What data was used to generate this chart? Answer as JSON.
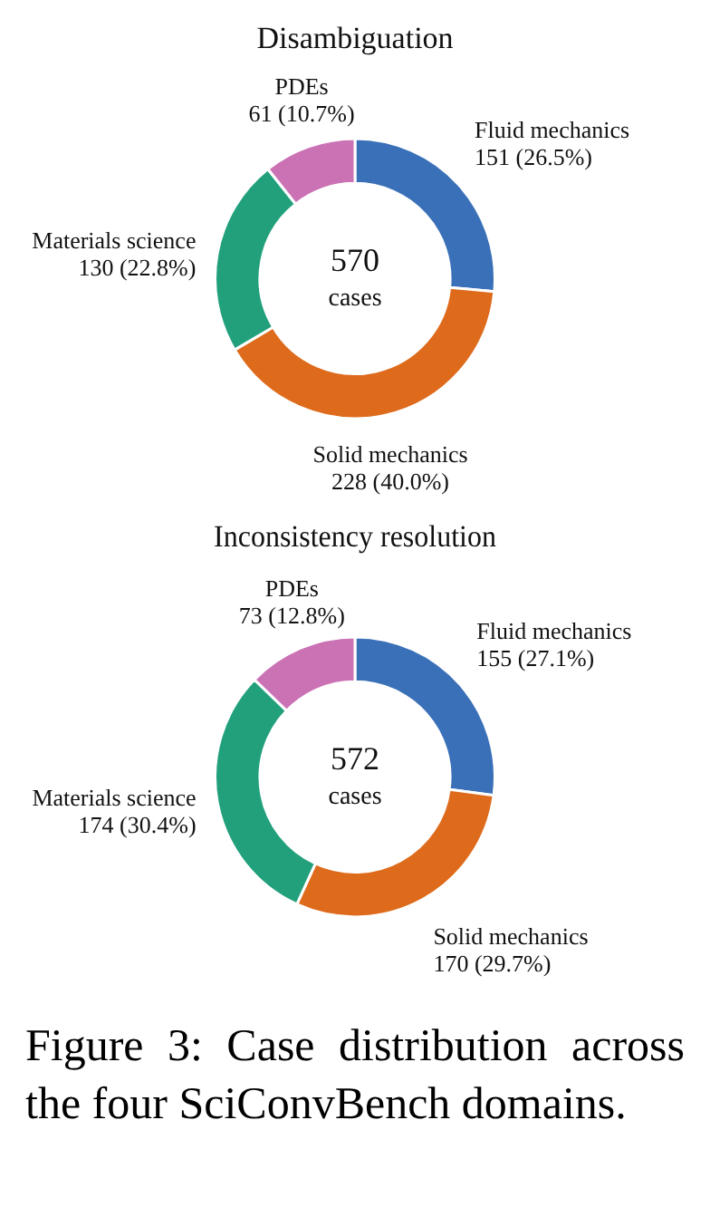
{
  "chart_data": [
    {
      "type": "donut",
      "title": "Disambiguation",
      "categories": [
        "Fluid mechanics",
        "Solid mechanics",
        "Materials science",
        "PDEs"
      ],
      "values": [
        151,
        228,
        130,
        61
      ],
      "colors": [
        "#3a70b8",
        "#de6b1c",
        "#22a07c",
        "#cb72b5"
      ],
      "value_labels": [
        "151 (26.5%)",
        "228 (40.0%)",
        "130 (22.8%)",
        "61 (10.7%)"
      ],
      "legend": false,
      "annotations": [
        "570",
        "cases"
      ]
    },
    {
      "type": "donut",
      "title": "Inconsistency resolution",
      "categories": [
        "Fluid mechanics",
        "Solid mechanics",
        "Materials science",
        "PDEs"
      ],
      "values": [
        155,
        170,
        174,
        73
      ],
      "colors": [
        "#3a70b8",
        "#de6b1c",
        "#22a07c",
        "#cb72b5"
      ],
      "value_labels": [
        "155 (27.1%)",
        "170 (29.7%)",
        "174 (30.4%)",
        "73 (12.8%)"
      ],
      "legend": false,
      "annotations": [
        "572",
        "cases",
        "Figure 3:  Case distribution across the four SciConvBench domains."
      ]
    }
  ]
}
